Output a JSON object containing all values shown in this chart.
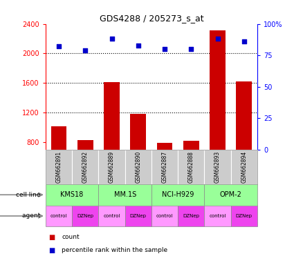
{
  "title": "GDS4288 / 205273_s_at",
  "samples": [
    "GSM662891",
    "GSM662892",
    "GSM662889",
    "GSM662890",
    "GSM662887",
    "GSM662888",
    "GSM662893",
    "GSM662894"
  ],
  "bar_values": [
    1020,
    830,
    1610,
    1185,
    790,
    820,
    2310,
    1620
  ],
  "scatter_values": [
    82,
    79,
    88,
    83,
    80,
    80,
    88,
    86
  ],
  "bar_color": "#cc0000",
  "scatter_color": "#0000cc",
  "ylim_left": [
    700,
    2400
  ],
  "ylim_right": [
    0,
    100
  ],
  "yticks_left": [
    800,
    1200,
    1600,
    2000,
    2400
  ],
  "yticks_right": [
    0,
    25,
    50,
    75,
    100
  ],
  "cell_lines": [
    "KMS18",
    "MM.1S",
    "NCI-H929",
    "OPM-2"
  ],
  "cell_line_color": "#99ff99",
  "agents": [
    "control",
    "DZNep",
    "control",
    "DZNep",
    "control",
    "DZNep",
    "control",
    "DZNep"
  ],
  "agent_colors_alt": [
    "#ff99ff",
    "#ee44ee",
    "#ff99ff",
    "#ee44ee",
    "#ff99ff",
    "#ee44ee",
    "#ff99ff",
    "#ee44ee"
  ],
  "gsm_bg_color": "#cccccc",
  "legend_count_color": "#cc0000",
  "legend_pct_color": "#0000cc",
  "grid_lines": [
    2000,
    1600,
    1200
  ],
  "dotted_800": true
}
